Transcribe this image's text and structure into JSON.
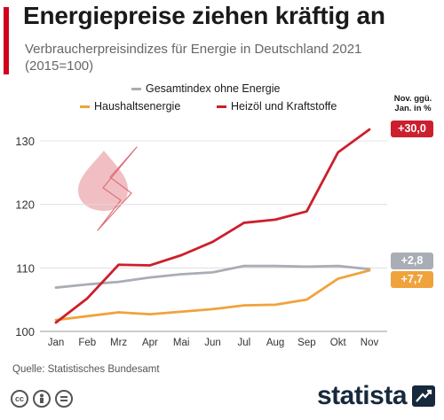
{
  "header": {
    "title": "Energiepreise ziehen kräftig an",
    "subtitle": "Verbraucherpreisindizes für Energie in Deutschland 2021 (2015=100)"
  },
  "legend": {
    "gray_label": "Gesamtindex ohne Energie",
    "orange_label": "Haushaltsenergie",
    "red_label": "Heizöl und Kraftstoffe"
  },
  "change_header": {
    "line1": "Nov. ggü.",
    "line2": "Jan. in %"
  },
  "badges": {
    "red": "+30,0",
    "gray": "+2,8",
    "orange": "+7,7"
  },
  "footer": {
    "source": "Quelle: Statistisches Bundesamt",
    "brand": "statista"
  },
  "colors": {
    "accent": "#d0021b",
    "gray_series": "#a9adb5",
    "orange_series": "#f0a33c",
    "red_series": "#cc1f2d",
    "icon": "#e8a3a8"
  },
  "icons": [
    "flame-lightning-icon",
    "creative-commons-icon",
    "person-attribution-icon",
    "no-derivatives-icon",
    "statista-logo-icon"
  ],
  "chart_data": {
    "type": "line",
    "categories": [
      "Jan",
      "Feb",
      "Mrz",
      "Apr",
      "Mai",
      "Jun",
      "Jul",
      "Aug",
      "Sep",
      "Okt",
      "Nov"
    ],
    "ylim": [
      100,
      130
    ],
    "yticks": [
      100,
      110,
      120,
      130
    ],
    "grid": true,
    "legend_position": "top",
    "series": [
      {
        "name": "Gesamtindex ohne Energie",
        "color": "#a9adb5",
        "values": [
          106.9,
          107.4,
          107.8,
          108.5,
          109.0,
          109.3,
          110.3,
          110.3,
          110.2,
          110.3,
          109.8
        ]
      },
      {
        "name": "Haushaltsenergie",
        "color": "#f0a33c",
        "values": [
          101.8,
          102.4,
          103.0,
          102.7,
          103.1,
          103.5,
          104.1,
          104.2,
          105.0,
          108.3,
          109.6
        ]
      },
      {
        "name": "Heizöl und Kraftstoffe",
        "color": "#cc1f2d",
        "values": [
          101.4,
          105.2,
          110.5,
          110.4,
          112.0,
          114.1,
          117.1,
          117.6,
          118.9,
          128.2,
          131.8
        ]
      }
    ]
  }
}
